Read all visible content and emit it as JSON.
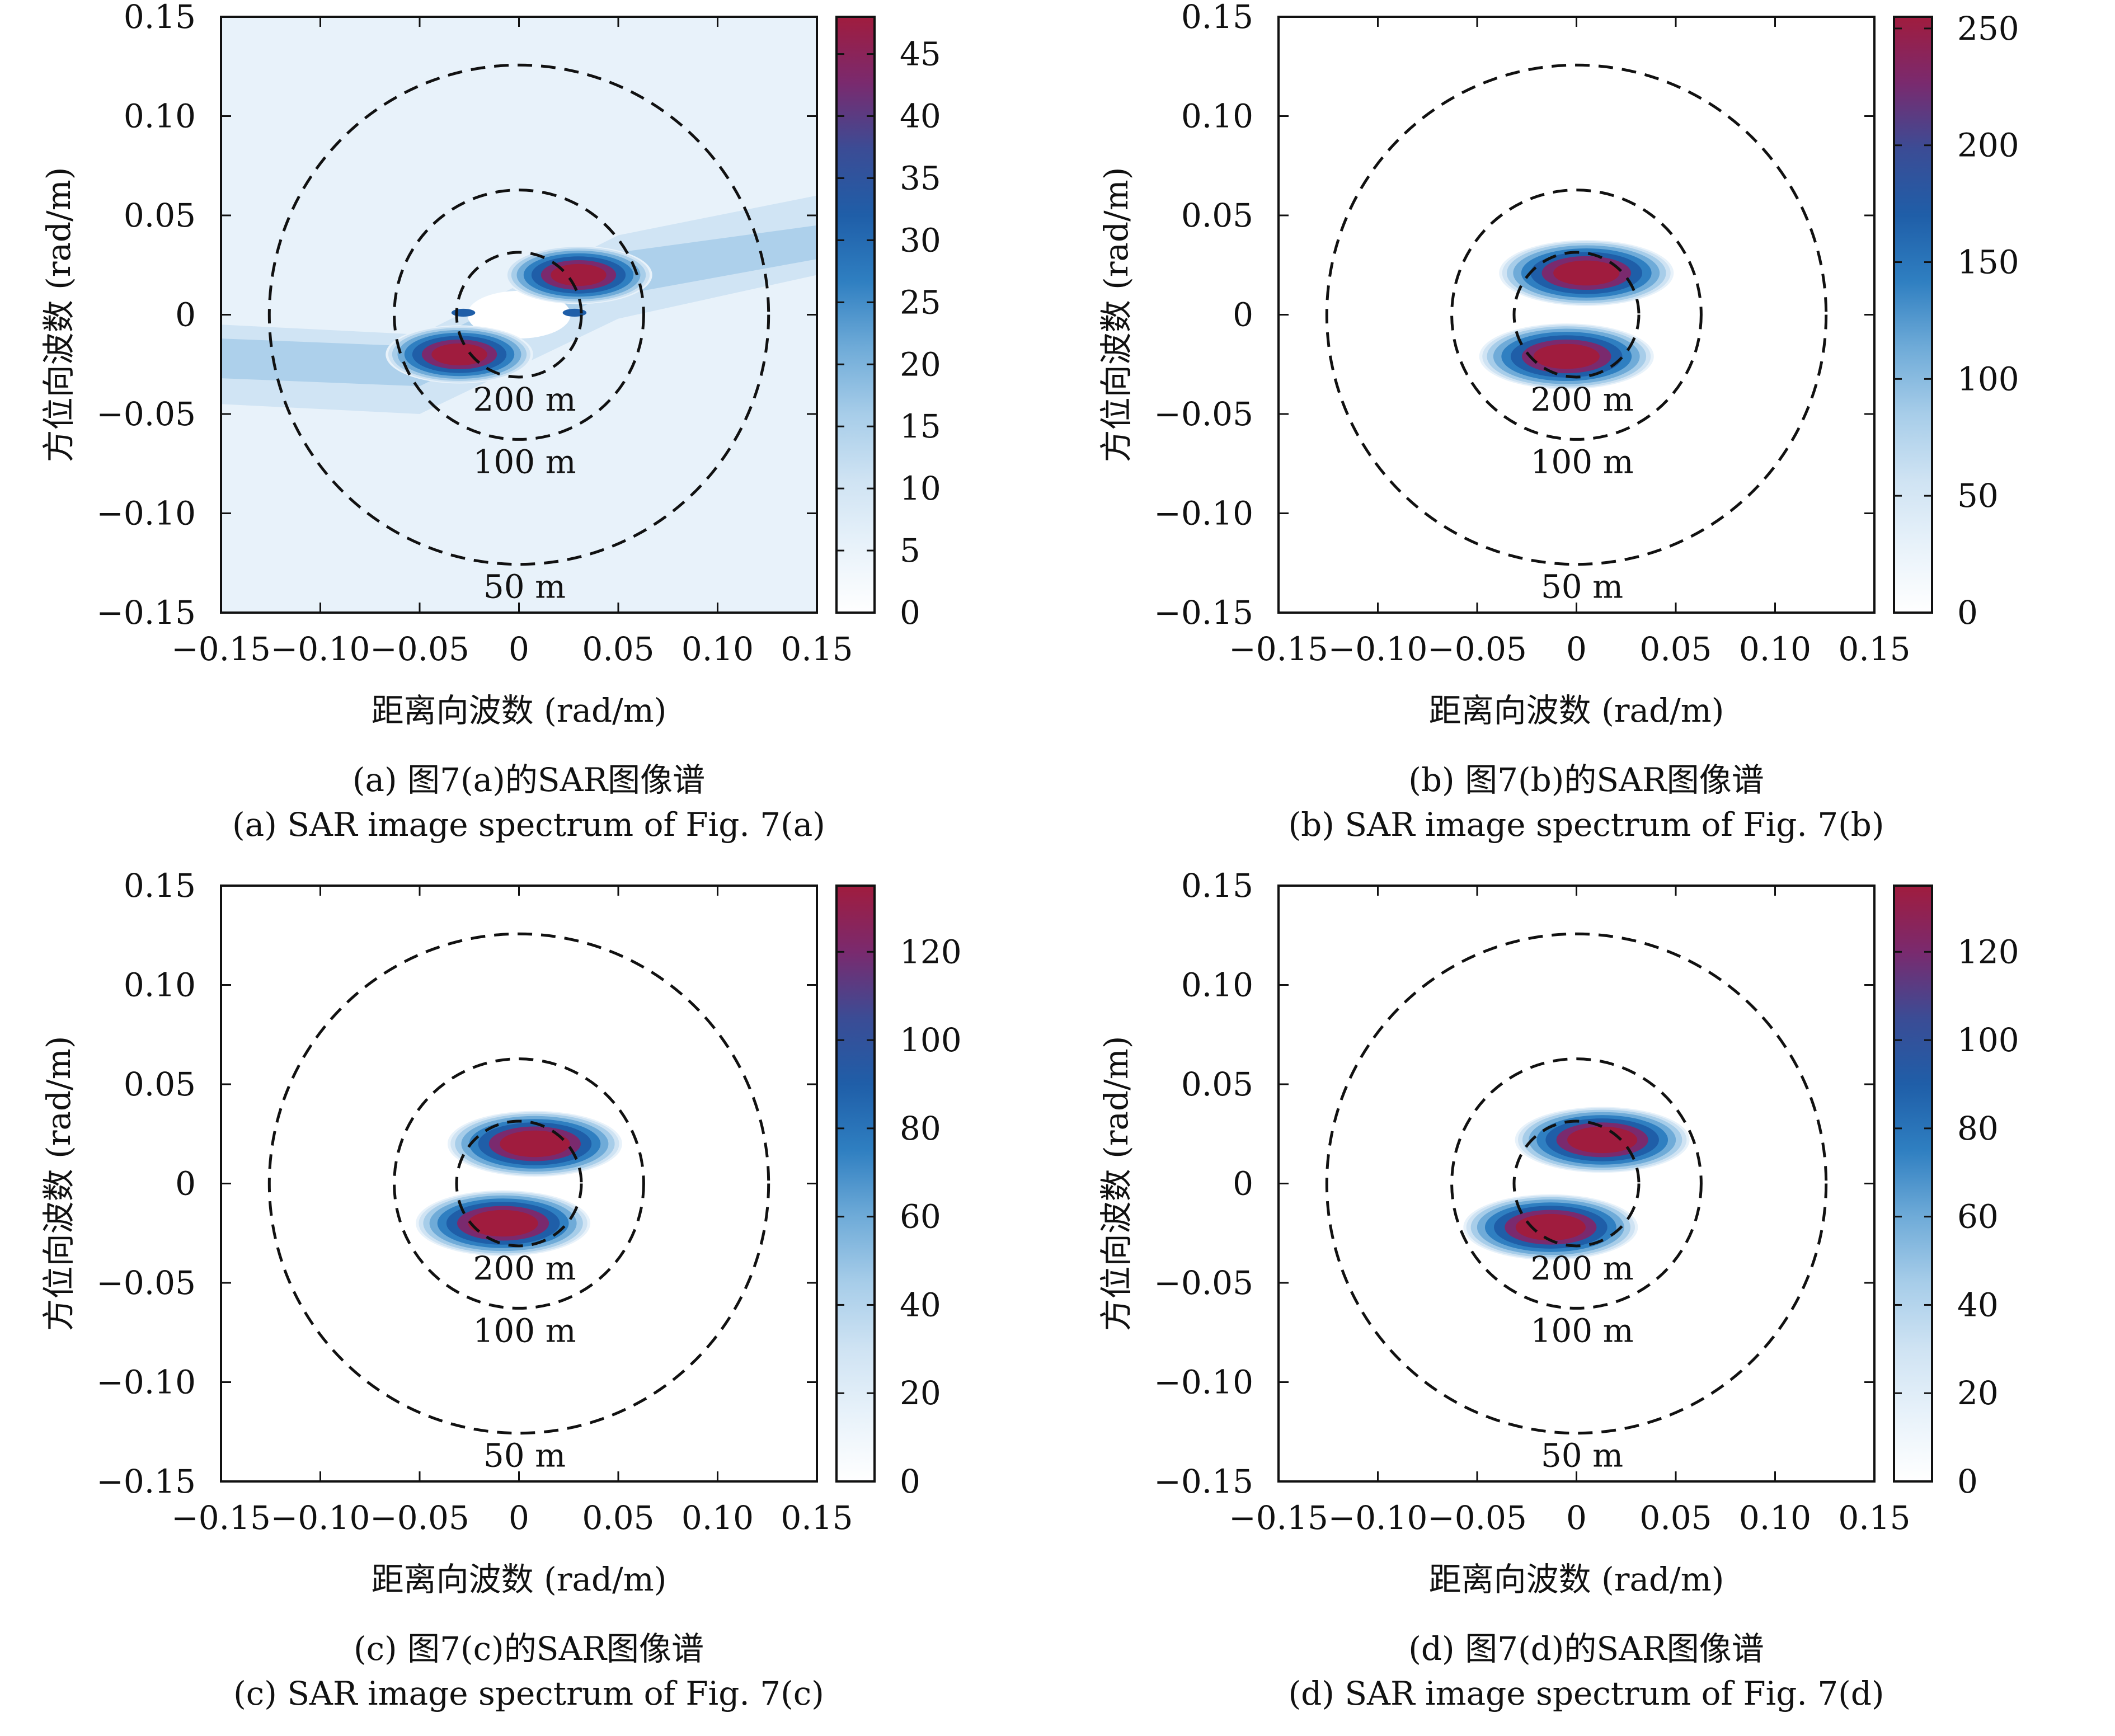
{
  "chart_data": [
    {
      "type": "heatmap",
      "panel": "a",
      "xlabel": "距离向波数 (rad/m)",
      "ylabel": "方位向波数 (rad/m)",
      "xlim": [
        -0.15,
        0.15
      ],
      "ylim": [
        -0.15,
        0.15
      ],
      "x_ticks": [
        "−0.15",
        "−0.10",
        "−0.05",
        "0",
        "0.05",
        "0.10",
        "0.15"
      ],
      "y_ticks": [
        "−0.15",
        "−0.10",
        "−0.05",
        "0",
        "0.05",
        "0.10",
        "0.15"
      ],
      "x_tick_values": [
        -0.15,
        -0.1,
        -0.05,
        0,
        0.05,
        0.1,
        0.15
      ],
      "y_tick_values": [
        -0.15,
        -0.1,
        -0.05,
        0,
        0.05,
        0.1,
        0.15
      ],
      "colorbar": {
        "min": 0,
        "max": 48,
        "ticks": [
          0,
          5,
          10,
          15,
          20,
          25,
          30,
          35,
          40,
          45
        ]
      },
      "background_level": 5,
      "peaks": [
        {
          "x": 0.03,
          "y": 0.02,
          "value": 47
        },
        {
          "x": -0.03,
          "y": -0.02,
          "value": 47
        }
      ],
      "circles": [
        {
          "label": "200 m",
          "radius": 0.0314
        },
        {
          "label": "100 m",
          "radius": 0.0628
        },
        {
          "label": "50 m",
          "radius": 0.1257
        }
      ],
      "caption_zh": "(a) 图7(a)的SAR图像谱",
      "caption_en": "(a) SAR image spectrum of Fig. 7(a)"
    },
    {
      "type": "heatmap",
      "panel": "b",
      "xlabel": "距离向波数 (rad/m)",
      "ylabel": "方位向波数 (rad/m)",
      "xlim": [
        -0.15,
        0.15
      ],
      "ylim": [
        -0.15,
        0.15
      ],
      "x_ticks": [
        "−0.15",
        "−0.10",
        "−0.05",
        "0",
        "0.05",
        "0.10",
        "0.15"
      ],
      "y_ticks": [
        "−0.15",
        "−0.10",
        "−0.05",
        "0",
        "0.05",
        "0.10",
        "0.15"
      ],
      "x_tick_values": [
        -0.15,
        -0.1,
        -0.05,
        0,
        0.05,
        0.1,
        0.15
      ],
      "y_tick_values": [
        -0.15,
        -0.1,
        -0.05,
        0,
        0.05,
        0.1,
        0.15
      ],
      "colorbar": {
        "min": 0,
        "max": 255,
        "ticks": [
          0,
          50,
          100,
          150,
          200,
          250
        ]
      },
      "background_level": 0,
      "peaks": [
        {
          "x": 0.005,
          "y": 0.021,
          "value": 250
        },
        {
          "x": -0.005,
          "y": -0.021,
          "value": 250
        }
      ],
      "circles": [
        {
          "label": "200 m",
          "radius": 0.0314
        },
        {
          "label": "100 m",
          "radius": 0.0628
        },
        {
          "label": "50 m",
          "radius": 0.1257
        }
      ],
      "caption_zh": "(b) 图7(b)的SAR图像谱",
      "caption_en": "(b) SAR image spectrum of Fig. 7(b)"
    },
    {
      "type": "heatmap",
      "panel": "c",
      "xlabel": "距离向波数 (rad/m)",
      "ylabel": "方位向波数 (rad/m)",
      "xlim": [
        -0.15,
        0.15
      ],
      "ylim": [
        -0.15,
        0.15
      ],
      "x_ticks": [
        "−0.15",
        "−0.10",
        "−0.05",
        "0",
        "0.05",
        "0.10",
        "0.15"
      ],
      "y_ticks": [
        "−0.15",
        "−0.10",
        "−0.05",
        "0",
        "0.05",
        "0.10",
        "0.15"
      ],
      "x_tick_values": [
        -0.15,
        -0.1,
        -0.05,
        0,
        0.05,
        0.1,
        0.15
      ],
      "y_tick_values": [
        -0.15,
        -0.1,
        -0.05,
        0,
        0.05,
        0.1,
        0.15
      ],
      "colorbar": {
        "min": 0,
        "max": 135,
        "ticks": [
          0,
          20,
          40,
          60,
          80,
          100,
          120
        ]
      },
      "background_level": 0,
      "peaks": [
        {
          "x": 0.008,
          "y": 0.02,
          "value": 135
        },
        {
          "x": -0.008,
          "y": -0.02,
          "value": 135
        }
      ],
      "circles": [
        {
          "label": "200 m",
          "radius": 0.0314
        },
        {
          "label": "100 m",
          "radius": 0.0628
        },
        {
          "label": "50 m",
          "radius": 0.1257
        }
      ],
      "caption_zh": "(c) 图7(c)的SAR图像谱",
      "caption_en": "(c) SAR image spectrum of Fig. 7(c)"
    },
    {
      "type": "heatmap",
      "panel": "d",
      "xlabel": "距离向波数 (rad/m)",
      "ylabel": "方位向波数 (rad/m)",
      "xlim": [
        -0.15,
        0.15
      ],
      "ylim": [
        -0.15,
        0.15
      ],
      "x_ticks": [
        "−0.15",
        "−0.10",
        "−0.05",
        "0",
        "0.05",
        "0.10",
        "0.15"
      ],
      "y_ticks": [
        "−0.15",
        "−0.10",
        "−0.05",
        "0",
        "0.05",
        "0.10",
        "0.15"
      ],
      "x_tick_values": [
        -0.15,
        -0.1,
        -0.05,
        0,
        0.05,
        0.1,
        0.15
      ],
      "y_tick_values": [
        -0.15,
        -0.1,
        -0.05,
        0,
        0.05,
        0.1,
        0.15
      ],
      "colorbar": {
        "min": 0,
        "max": 135,
        "ticks": [
          0,
          20,
          40,
          60,
          80,
          100,
          120
        ]
      },
      "background_level": 0,
      "peaks": [
        {
          "x": 0.013,
          "y": 0.022,
          "value": 135
        },
        {
          "x": -0.013,
          "y": -0.022,
          "value": 135
        }
      ],
      "circles": [
        {
          "label": "200 m",
          "radius": 0.0314
        },
        {
          "label": "100 m",
          "radius": 0.0628
        },
        {
          "label": "50 m",
          "radius": 0.1257
        }
      ],
      "caption_zh": "(d) 图7(d)的SAR图像谱",
      "caption_en": "(d) SAR image spectrum of Fig. 7(d)"
    }
  ],
  "colors": {
    "colormap": [
      "#ffffff",
      "#e8f2fa",
      "#cfe3f3",
      "#a7cde9",
      "#6fabd8",
      "#2f7fc1",
      "#1f5ea8",
      "#3b4c95",
      "#7a2a6e",
      "#a01c3e"
    ],
    "axis": "#111111",
    "circle": "#111111"
  }
}
